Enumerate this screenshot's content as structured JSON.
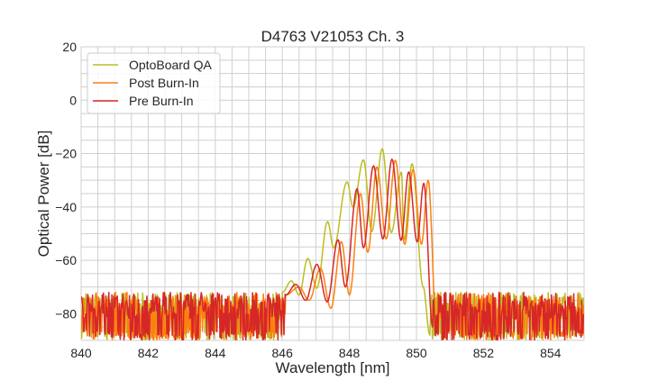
{
  "chart_data": {
    "type": "line",
    "title": "D4763 V21053 Ch. 3",
    "xlabel": "Wavelength [nm]",
    "ylabel": "Optical Power [dB]",
    "xlim": [
      840,
      855
    ],
    "ylim": [
      -90,
      20
    ],
    "xticks": [
      "840",
      "842",
      "844",
      "846",
      "848",
      "850",
      "852",
      "854"
    ],
    "yticks": [
      "20",
      "0",
      "−20",
      "−40",
      "−60",
      "−80"
    ],
    "grid": true,
    "legend_position": "top-left",
    "noise_floor_range_db": [
      -90,
      -72
    ],
    "series": [
      {
        "name": "OptoBoard QA",
        "color": "#bcbd22",
        "x": [
          846.0,
          846.27,
          846.5,
          846.76,
          847.03,
          847.35,
          847.53,
          847.93,
          848.11,
          848.42,
          848.67,
          848.98,
          849.25,
          849.55,
          849.63,
          849.87,
          850.2,
          850.4
        ],
        "y": [
          -72,
          -67.7,
          -73,
          -59.3,
          -70.5,
          -45.5,
          -55.3,
          -30.6,
          -40.1,
          -22.3,
          -49.2,
          -18.2,
          -49.6,
          -27,
          -52.5,
          -23.8,
          -70,
          -88
        ]
      },
      {
        "name": "Post Burn-In",
        "color": "#ff7f0e",
        "x": [
          846.1,
          846.5,
          846.8,
          847.14,
          847.45,
          847.76,
          848.0,
          848.33,
          848.55,
          848.82,
          849.1,
          849.37,
          849.65,
          849.9,
          850.15,
          850.35,
          850.6
        ],
        "y": [
          -73,
          -70,
          -75,
          -63,
          -78,
          -53,
          -73,
          -35,
          -57,
          -25,
          -52,
          -22.5,
          -54,
          -26,
          -54,
          -30,
          -85
        ]
      },
      {
        "name": "Pre Burn-In",
        "color": "#d62728",
        "x": [
          846.1,
          846.4,
          846.7,
          847.03,
          847.34,
          847.66,
          847.88,
          848.23,
          848.42,
          848.72,
          849.0,
          849.27,
          849.54,
          849.77,
          850.02,
          850.22,
          850.48
        ],
        "y": [
          -73,
          -69,
          -75,
          -61.5,
          -75.6,
          -52.3,
          -70,
          -33.1,
          -55.3,
          -24.6,
          -52,
          -22.1,
          -52.5,
          -26.9,
          -53.1,
          -31.1,
          -85
        ]
      }
    ]
  }
}
